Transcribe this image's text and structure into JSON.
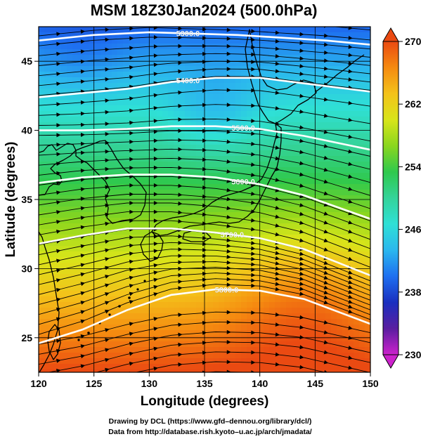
{
  "figure": {
    "title": "MSM 18Z30Jan2024 (500.0hPa)",
    "xlabel": "Longitude (degrees)",
    "ylabel": "Latitude  (degrees)",
    "credit_drawing": "Drawing by DCL (https://www.gfd–dennou.org/library/dcl/)",
    "credit_data": "Data from http://database.rish.kyoto–u.ac.jp/arch/jmadata/"
  },
  "chart_data": {
    "type": "heatmap",
    "title": "MSM 18Z30Jan2024 (500.0hPa)",
    "xlabel": "Longitude (degrees)",
    "ylabel": "Latitude  (degrees)",
    "xlim": [
      120,
      150
    ],
    "ylim": [
      22.5,
      47.5
    ],
    "x_ticks": [
      "120",
      "125",
      "130",
      "135",
      "140",
      "145",
      "150"
    ],
    "y_ticks": [
      "25",
      "30",
      "35",
      "40",
      "45"
    ],
    "grid": true,
    "colorbar": {
      "min": 230,
      "max": 270,
      "ticks": [
        "230",
        "238",
        "246",
        "254",
        "262",
        "270"
      ],
      "colors": [
        "#cc22cc",
        "#5a1ea0",
        "#1a2fbf",
        "#1e6ff0",
        "#2bb7ee",
        "#2fe0d6",
        "#34d39a",
        "#2fc94d",
        "#8ad61e",
        "#d8e51a",
        "#f4c21a",
        "#f58a10",
        "#ea4a12"
      ]
    },
    "contours": [
      {
        "label": "5300.0",
        "points": [
          [
            120,
            46.5
          ],
          [
            125,
            46.9
          ],
          [
            130,
            47.1
          ],
          [
            134,
            47.0
          ],
          [
            138,
            46.9
          ],
          [
            142,
            46.7
          ],
          [
            146,
            46.5
          ],
          [
            150,
            46.2
          ]
        ]
      },
      {
        "label": "5400.0",
        "points": [
          [
            120,
            42.4
          ],
          [
            124,
            42.7
          ],
          [
            128,
            43.0
          ],
          [
            132,
            43.5
          ],
          [
            136,
            43.8
          ],
          [
            140,
            43.8
          ],
          [
            144,
            43.4
          ],
          [
            150,
            42.8
          ]
        ]
      },
      {
        "label": "5500.0",
        "points": [
          [
            120,
            40.0
          ],
          [
            124,
            40.0
          ],
          [
            128,
            40.1
          ],
          [
            132,
            40.3
          ],
          [
            136,
            40.3
          ],
          [
            140,
            40.1
          ],
          [
            144,
            39.6
          ],
          [
            150,
            38.6
          ]
        ]
      },
      {
        "label": "5600.0",
        "points": [
          [
            120,
            36.2
          ],
          [
            124,
            36.6
          ],
          [
            128,
            36.8
          ],
          [
            132,
            36.8
          ],
          [
            136,
            36.6
          ],
          [
            140,
            36.1
          ],
          [
            144,
            35.3
          ],
          [
            150,
            33.6
          ]
        ]
      },
      {
        "label": "5700.0",
        "points": [
          [
            120,
            31.8
          ],
          [
            124,
            32.4
          ],
          [
            128,
            32.9
          ],
          [
            132,
            32.9
          ],
          [
            136,
            32.6
          ],
          [
            140,
            32.2
          ],
          [
            144,
            31.4
          ],
          [
            150,
            29.5
          ]
        ]
      },
      {
        "label": "5800.0",
        "points": [
          [
            120,
            24.6
          ],
          [
            124,
            25.6
          ],
          [
            128,
            27.0
          ],
          [
            132,
            28.1
          ],
          [
            136,
            28.5
          ],
          [
            140,
            28.4
          ],
          [
            144,
            27.8
          ],
          [
            150,
            26.0
          ]
        ]
      }
    ],
    "wind": "westerly streamlines"
  }
}
